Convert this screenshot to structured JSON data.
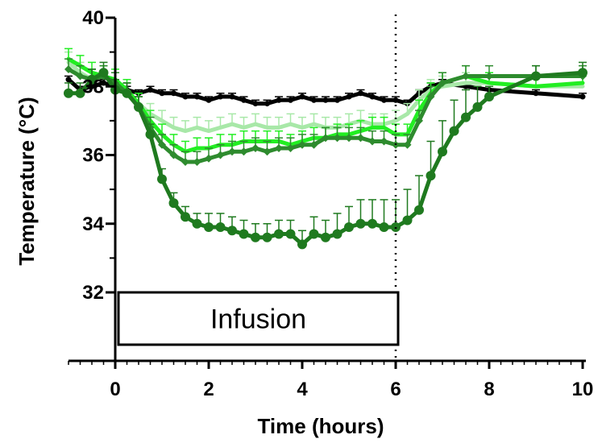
{
  "chart_data": {
    "type": "line",
    "xlabel": "Time (hours)",
    "ylabel": "Temperature (°C)",
    "xlim": [
      -1,
      10
    ],
    "ylim": [
      30,
      40
    ],
    "x_ticks": [
      0,
      2,
      4,
      6,
      8,
      10
    ],
    "y_ticks": [
      32,
      34,
      36,
      38,
      40
    ],
    "grid": false,
    "legend": "none",
    "annotations": {
      "box_label": "Infusion",
      "box_x_range": [
        0,
        6
      ],
      "box_y_range": [
        30.5,
        32
      ],
      "vertical_line_x": 6
    },
    "series": [
      {
        "color": "#000000",
        "marker": "small-circle",
        "x": [
          -1,
          -0.75,
          -0.5,
          -0.25,
          0,
          0.25,
          0.5,
          0.75,
          1,
          1.25,
          1.5,
          1.75,
          2,
          2.25,
          2.5,
          2.75,
          3,
          3.25,
          3.5,
          3.75,
          4,
          4.25,
          4.5,
          4.75,
          5,
          5.25,
          5.5,
          5.75,
          6,
          6.25,
          6.5,
          6.75,
          7,
          7.5,
          8,
          9,
          10
        ],
        "y": [
          38.2,
          37.9,
          38.0,
          38.1,
          38.0,
          37.9,
          37.8,
          37.9,
          37.8,
          37.8,
          37.7,
          37.7,
          37.6,
          37.7,
          37.7,
          37.6,
          37.5,
          37.5,
          37.6,
          37.6,
          37.7,
          37.6,
          37.6,
          37.6,
          37.7,
          37.8,
          37.7,
          37.6,
          37.6,
          37.5,
          37.8,
          38.0,
          38.1,
          38.0,
          37.9,
          37.8,
          37.7
        ],
        "error": [
          0.1,
          0.1,
          0.1,
          0.1,
          0.1,
          0.1,
          0.1,
          0.1,
          0.1,
          0.1,
          0.1,
          0.1,
          0.1,
          0.1,
          0.1,
          0.1,
          0.1,
          0.1,
          0.1,
          0.1,
          0.1,
          0.1,
          0.1,
          0.1,
          0.1,
          0.1,
          0.1,
          0.1,
          0.1,
          0.1,
          0.1,
          0.1,
          0.1,
          0.1,
          0.1,
          0.1,
          0.1
        ]
      },
      {
        "color": "#a8e8a8",
        "marker": "none",
        "x": [
          -1,
          -0.75,
          -0.5,
          -0.25,
          0,
          0.25,
          0.5,
          0.75,
          1,
          1.25,
          1.5,
          1.75,
          2,
          2.25,
          2.5,
          2.75,
          3,
          3.25,
          3.5,
          3.75,
          4,
          4.25,
          4.5,
          4.75,
          5,
          5.25,
          5.5,
          5.75,
          6,
          6.25,
          6.5,
          6.75,
          7,
          7.5,
          8,
          9,
          10
        ],
        "y": [
          38.7,
          38.4,
          38.2,
          38.3,
          38.1,
          37.8,
          37.5,
          37.2,
          37.0,
          36.8,
          36.7,
          36.8,
          36.7,
          36.8,
          36.9,
          36.8,
          36.9,
          36.8,
          36.8,
          36.9,
          36.8,
          36.9,
          36.8,
          36.8,
          36.9,
          37.0,
          36.9,
          36.9,
          37.0,
          37.2,
          37.6,
          37.9,
          38.0,
          38.1,
          38.1,
          38.0,
          38.0
        ],
        "error": [
          0.3,
          0.3,
          0.3,
          0.3,
          0.3,
          0.3,
          0.3,
          0.3,
          0.3,
          0.3,
          0.3,
          0.3,
          0.3,
          0.3,
          0.3,
          0.3,
          0.3,
          0.3,
          0.3,
          0.3,
          0.3,
          0.3,
          0.3,
          0.3,
          0.3,
          0.3,
          0.3,
          0.3,
          0.3,
          0.3,
          0.3,
          0.3,
          0.3,
          0.3,
          0.3,
          0.3,
          0.3
        ]
      },
      {
        "color": "#22ee22",
        "marker": "none",
        "x": [
          -1,
          -0.75,
          -0.5,
          -0.25,
          0,
          0.25,
          0.5,
          0.75,
          1,
          1.25,
          1.5,
          1.75,
          2,
          2.25,
          2.5,
          2.75,
          3,
          3.25,
          3.5,
          3.75,
          4,
          4.25,
          4.5,
          4.75,
          5,
          5.25,
          5.5,
          5.75,
          6,
          6.25,
          6.5,
          6.75,
          7,
          7.5,
          8,
          9,
          10
        ],
        "y": [
          38.8,
          38.6,
          38.4,
          38.3,
          38.2,
          37.9,
          37.5,
          37.0,
          36.6,
          36.3,
          36.1,
          36.2,
          36.2,
          36.3,
          36.3,
          36.4,
          36.4,
          36.4,
          36.4,
          36.3,
          36.4,
          36.5,
          36.5,
          36.6,
          36.6,
          36.7,
          36.8,
          36.8,
          36.6,
          36.6,
          37.3,
          37.8,
          38.1,
          38.3,
          38.1,
          38.0,
          38.1
        ],
        "error": [
          0.3,
          0.3,
          0.3,
          0.3,
          0.3,
          0.3,
          0.3,
          0.3,
          0.3,
          0.3,
          0.3,
          0.3,
          0.3,
          0.3,
          0.3,
          0.3,
          0.3,
          0.3,
          0.3,
          0.3,
          0.3,
          0.3,
          0.3,
          0.3,
          0.3,
          0.3,
          0.3,
          0.3,
          0.3,
          0.3,
          0.3,
          0.3,
          0.3,
          0.3,
          0.3,
          0.3,
          0.3
        ]
      },
      {
        "color": "#2e8b2e",
        "marker": "diamond",
        "x": [
          -1,
          -0.75,
          -0.5,
          -0.25,
          0,
          0.25,
          0.5,
          0.75,
          1,
          1.25,
          1.5,
          1.75,
          2,
          2.25,
          2.5,
          2.75,
          3,
          3.25,
          3.5,
          3.75,
          4,
          4.25,
          4.5,
          4.75,
          5,
          5.25,
          5.5,
          5.75,
          6,
          6.25,
          6.5,
          6.75,
          7,
          7.5,
          8,
          9,
          10
        ],
        "y": [
          38.5,
          38.3,
          38.2,
          38.3,
          38.1,
          37.8,
          37.4,
          36.8,
          36.3,
          36.0,
          35.8,
          35.8,
          35.9,
          36.0,
          36.1,
          36.1,
          36.2,
          36.1,
          36.2,
          36.2,
          36.3,
          36.3,
          36.5,
          36.5,
          36.5,
          36.5,
          36.4,
          36.4,
          36.3,
          36.3,
          37.0,
          37.7,
          38.1,
          38.3,
          38.3,
          38.3,
          38.3
        ],
        "error": [
          0.3,
          0.3,
          0.3,
          0.3,
          0.3,
          0.3,
          0.3,
          0.3,
          0.3,
          0.3,
          0.3,
          0.3,
          0.3,
          0.3,
          0.3,
          0.3,
          0.3,
          0.3,
          0.3,
          0.3,
          0.3,
          0.3,
          0.3,
          0.3,
          0.3,
          0.3,
          0.3,
          0.3,
          0.3,
          0.3,
          0.3,
          0.3,
          0.3,
          0.3,
          0.3,
          0.3,
          0.3
        ]
      },
      {
        "color": "#1f7a1f",
        "marker": "circle",
        "x": [
          -1,
          -0.75,
          -0.5,
          -0.25,
          0,
          0.25,
          0.5,
          0.75,
          1,
          1.25,
          1.5,
          1.75,
          2,
          2.25,
          2.5,
          2.75,
          3,
          3.25,
          3.5,
          3.75,
          4,
          4.25,
          4.5,
          4.75,
          5,
          5.25,
          5.5,
          5.75,
          6,
          6.25,
          6.5,
          6.75,
          7,
          7.25,
          7.5,
          7.75,
          8,
          9,
          10
        ],
        "y": [
          37.8,
          37.8,
          38.2,
          38.4,
          37.9,
          37.8,
          37.4,
          36.6,
          35.3,
          34.6,
          34.2,
          34.0,
          33.9,
          33.9,
          33.8,
          33.7,
          33.6,
          33.6,
          33.7,
          33.7,
          33.4,
          33.7,
          33.6,
          33.7,
          33.9,
          34.0,
          34.0,
          33.9,
          33.9,
          34.1,
          34.4,
          35.4,
          36.1,
          36.7,
          37.1,
          37.4,
          37.7,
          38.3,
          38.4
        ],
        "error": [
          0.3,
          0.3,
          0.3,
          0.3,
          0.3,
          0.3,
          0.3,
          0.3,
          0.3,
          0.3,
          0.3,
          0.3,
          0.4,
          0.4,
          0.4,
          0.4,
          0.4,
          0.4,
          0.4,
          0.4,
          0.4,
          0.5,
          0.5,
          0.6,
          0.6,
          0.7,
          0.7,
          0.8,
          0.8,
          0.9,
          1.0,
          1.0,
          0.9,
          0.9,
          0.8,
          0.6,
          0.3,
          0.3,
          0.3
        ]
      }
    ]
  }
}
